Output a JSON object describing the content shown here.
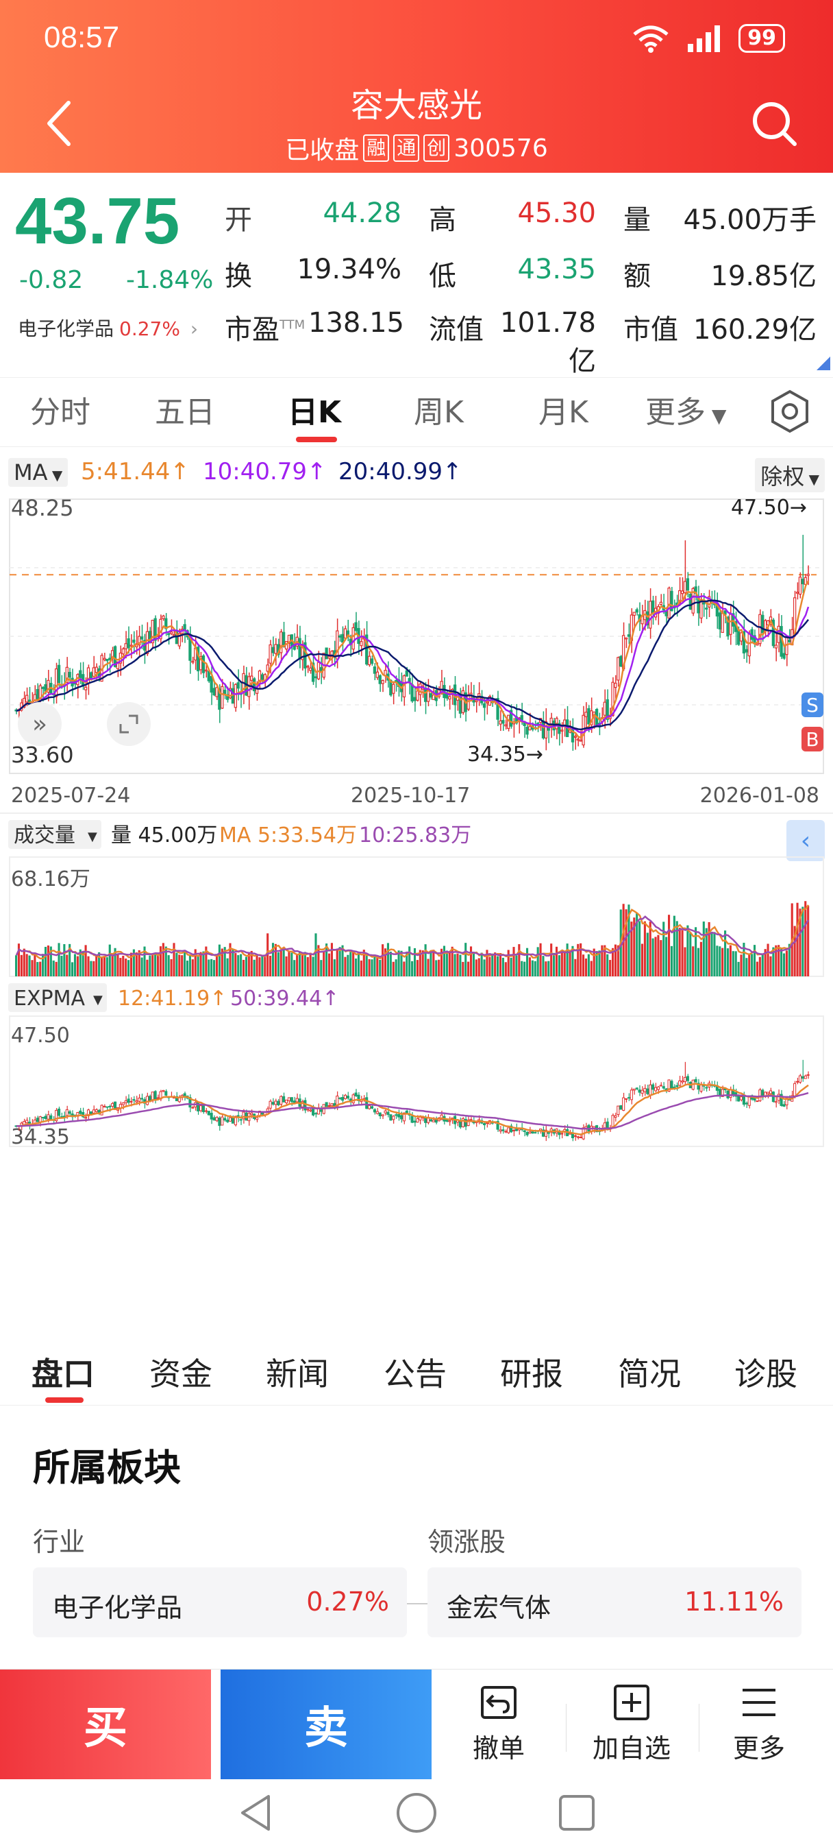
{
  "status_bar": {
    "time": "08:57",
    "battery": "99"
  },
  "header": {
    "name": "容大感光",
    "status": "已收盘",
    "tags": [
      "融",
      "通",
      "创"
    ],
    "code": "300576"
  },
  "quote": {
    "price": "43.75",
    "change": "-0.82",
    "change_pct": "-1.84%",
    "sector_name": "电子化学品",
    "sector_pct": "0.27%",
    "open_label": "开",
    "open": "44.28",
    "high_label": "高",
    "high": "45.30",
    "vol_label": "量",
    "volume": "45.00万手",
    "turnover_label": "换",
    "turnover": "19.34%",
    "low_label": "低",
    "low": "43.35",
    "amount_label": "额",
    "amount": "19.85亿",
    "pe_label": "市盈",
    "pe_sup": "TTM",
    "pe": "138.15",
    "float_label": "流值",
    "float_cap": "101.78亿",
    "mcap_label": "市值",
    "market_cap": "160.29亿"
  },
  "period_tabs": [
    "分时",
    "五日",
    "日K",
    "周K",
    "月K",
    "更多"
  ],
  "active_period": "日K",
  "ma_bar": {
    "chip": "MA",
    "ma5": "5:41.44",
    "ma10": "10:40.79",
    "ma20": "20:40.99",
    "right_chip": "除权"
  },
  "colors": {
    "up": "#e02f2f",
    "down": "#1aa371",
    "ma5": "#e8872e",
    "ma10": "#a020f0",
    "ma20": "#0a1a6e",
    "exp12": "#e8872e",
    "exp50": "#9a4bb0"
  },
  "chart_data": {
    "type": "candlestick",
    "price_axis": {
      "max": "48.25",
      "min": "33.60",
      "ylim": [
        33.6,
        48.25
      ]
    },
    "x_labels": [
      "2025-07-24",
      "2025-10-17",
      "2026-01-08"
    ],
    "high_marker": "47.50→",
    "low_marker": "34.35→",
    "reference_line": 44.3,
    "markers": [
      "S",
      "B"
    ],
    "volume": {
      "chip": "成交量",
      "label": "量 45.00万",
      "ma5": "MA 5:33.54万",
      "ma10": "10:25.83万",
      "axis_max": "68.16万"
    },
    "expma": {
      "chip": "EXPMA",
      "e12": "12:41.19",
      "e50": "50:39.44",
      "axis_max": "47.50",
      "axis_min": "34.35"
    }
  },
  "info_tabs": [
    "盘口",
    "资金",
    "新闻",
    "公告",
    "研报",
    "简况",
    "诊股"
  ],
  "sector_section": {
    "title": "所属板块",
    "industry_label": "行业",
    "leader_label": "领涨股",
    "industry_name": "电子化学品",
    "industry_pct": "0.27%",
    "leader_name": "金宏气体",
    "leader_pct": "11.11%"
  },
  "bottom_bar": {
    "buy": "买",
    "sell": "卖",
    "cancel": "撤单",
    "watchlist": "加自选",
    "more": "更多"
  }
}
